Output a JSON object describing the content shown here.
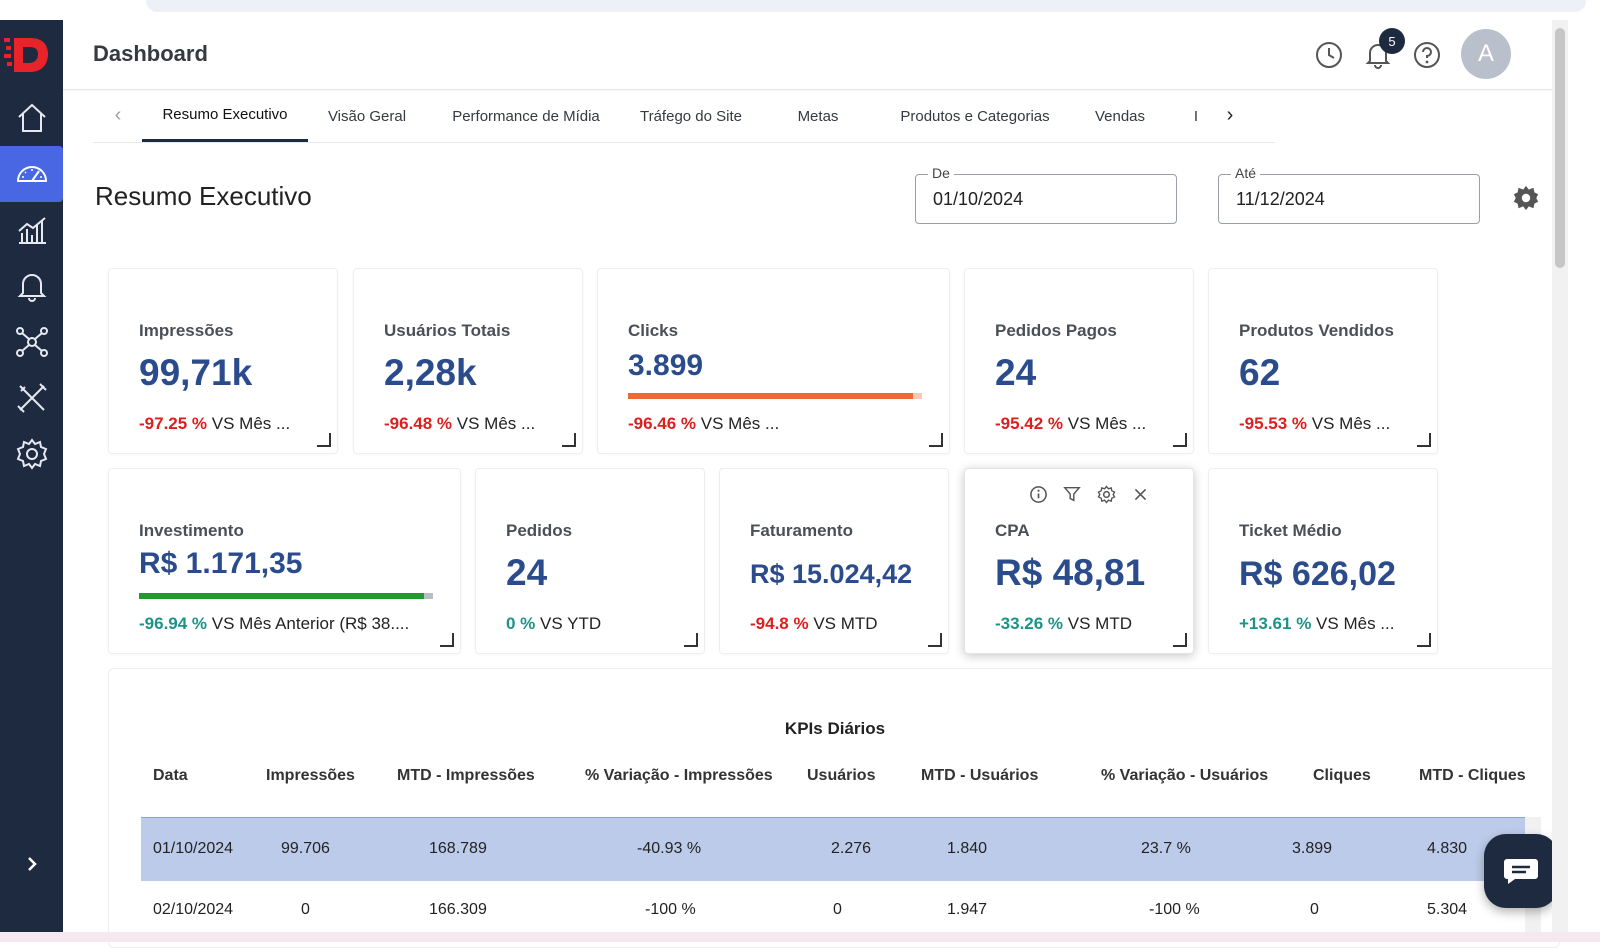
{
  "header": {
    "title": "Dashboard",
    "notification_count": "5",
    "avatar_initial": "A"
  },
  "sidebar": {
    "items": [
      {
        "icon": "home-icon"
      },
      {
        "icon": "speedometer-icon",
        "active": true
      },
      {
        "icon": "bar-chart-icon"
      },
      {
        "icon": "bell-icon"
      },
      {
        "icon": "network-icon"
      },
      {
        "icon": "tools-icon"
      },
      {
        "icon": "gear-icon"
      }
    ],
    "expand_glyph": "›"
  },
  "tabs": {
    "items": [
      {
        "label": "Resumo Executivo",
        "active": true
      },
      {
        "label": "Visão Geral"
      },
      {
        "label": "Performance de Mídia"
      },
      {
        "label": "Tráfego do Site"
      },
      {
        "label": "Metas"
      },
      {
        "label": "Produtos e Categorias"
      },
      {
        "label": "Vendas"
      },
      {
        "label": "I"
      }
    ],
    "prev_glyph": "‹",
    "next_glyph": "›"
  },
  "page": {
    "title": "Resumo Executivo",
    "date_from_label": "De",
    "date_from": "01/10/2024",
    "date_to_label": "Até",
    "date_to": "11/12/2024"
  },
  "kpis": [
    {
      "title": "Impressões",
      "value": "99,71k",
      "delta": "-97.25 %",
      "compare": "VS Mês ...",
      "trend": "negative"
    },
    {
      "title": "Usuários Totais",
      "value": "2,28k",
      "delta": "-96.48 %",
      "compare": "VS Mês ...",
      "trend": "negative"
    },
    {
      "title": "Clicks",
      "value": "3.899",
      "delta": "-96.46 %",
      "compare": "VS Mês ...",
      "trend": "negative",
      "progress": 0.97,
      "bar_color": "#ee6a35"
    },
    {
      "title": "Pedidos Pagos",
      "value": "24",
      "delta": "-95.42 %",
      "compare": "VS Mês ...",
      "trend": "negative"
    },
    {
      "title": "Produtos Vendidos",
      "value": "62",
      "delta": "-95.53 %",
      "compare": "VS Mês ...",
      "trend": "negative"
    },
    {
      "title": "Investimento",
      "value": "R$ 1.171,35",
      "delta": "-96.94 %",
      "compare": "VS Mês Anterior (R$ 38....",
      "trend": "positive",
      "progress": 0.97,
      "bar_color": "#1e9a2e"
    },
    {
      "title": "Pedidos",
      "value": "24",
      "delta": "0 %",
      "compare": "VS YTD",
      "trend": "positive"
    },
    {
      "title": "Faturamento",
      "value": "R$ 15.024,42",
      "delta": "-94.8 %",
      "compare": "VS MTD",
      "trend": "negative"
    },
    {
      "title": "CPA",
      "value": "R$ 48,81",
      "delta": "-33.26 %",
      "compare": "VS MTD",
      "trend": "positive"
    },
    {
      "title": "Ticket Médio",
      "value": "R$ 626,02",
      "delta": "+13.61 %",
      "compare": "VS Mês ...",
      "trend": "positive"
    }
  ],
  "table": {
    "title": "KPIs Diários",
    "columns": [
      "Data",
      "Impressões",
      "MTD - Impressões",
      "% Variação - Impressões",
      "Usuários",
      "MTD - Usuários",
      "% Variação - Usuários",
      "Cliques",
      "MTD - Cliques"
    ],
    "rows": [
      [
        "01/10/2024",
        "99.706",
        "168.789",
        "-40.93 %",
        "2.276",
        "1.840",
        "23.7 %",
        "3.899",
        "4.830"
      ],
      [
        "02/10/2024",
        "0",
        "166.309",
        "-100 %",
        "0",
        "1.947",
        "-100 %",
        "0",
        "5.304"
      ]
    ]
  },
  "colors": {
    "sidebar_bg": "#1e2a40",
    "sidebar_active": "#4a67e3",
    "kpi_value": "#2b4c8c",
    "negative": "#e01e1e",
    "positive": "#1b9488",
    "selected_row": "#bccbe9"
  }
}
